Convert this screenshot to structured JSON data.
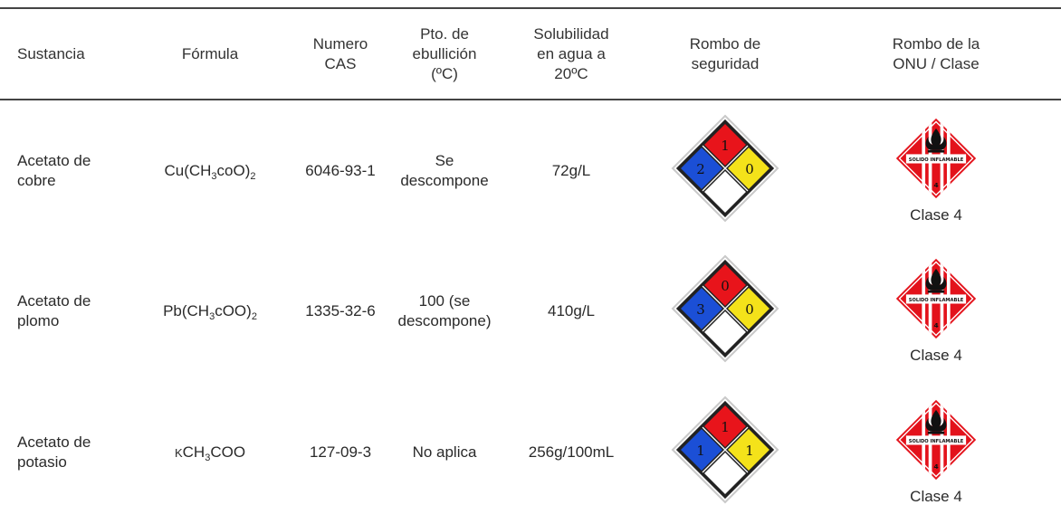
{
  "header": {
    "sustancia": "Sustancia",
    "formula": "Fórmula",
    "cas": [
      "Numero",
      "CAS"
    ],
    "pto": [
      "Pto. de",
      "ebullición",
      "(ºC)"
    ],
    "solubilidad": [
      "Solubilidad",
      "en agua a",
      "20ºC"
    ],
    "rombo_seguridad": [
      "Rombo de",
      "seguridad"
    ],
    "rombo_onu": [
      "Rombo de la",
      "ONU / Clase"
    ]
  },
  "rows": [
    {
      "sustancia": [
        "Acetato de",
        "cobre"
      ],
      "formula": {
        "a": "Cu(CH",
        "sub1": "3",
        "b": "coO)",
        "sub2": "2"
      },
      "cas": "6046-93-1",
      "pto": [
        "Se",
        "descompone"
      ],
      "solubilidad": "72g/L",
      "nfpa": {
        "top": "1",
        "left": "2",
        "right": "0"
      },
      "un_label": "SOLIDO INFLAMABLE",
      "un_number": "4",
      "clase": "Clase 4"
    },
    {
      "sustancia": [
        "Acetato de",
        "plomo"
      ],
      "formula": {
        "a": "Pb(CH",
        "sub1": "3",
        "b": "cOO)",
        "sub2": "2"
      },
      "cas": "1335-32-6",
      "pto": [
        "100 (se",
        "descompone)"
      ],
      "solubilidad": "410g/L",
      "nfpa": {
        "top": "0",
        "left": "3",
        "right": "0"
      },
      "un_label": "SOLIDO INFLAMABLE",
      "un_number": "4",
      "clase": "Clase 4"
    },
    {
      "sustancia": [
        "Acetato de",
        "potasio"
      ],
      "formula": {
        "k": "K",
        "a": "CH",
        "sub1": "3",
        "b": "COO"
      },
      "cas": "127-09-3",
      "pto": [
        "No aplica"
      ],
      "solubilidad": "256g/100mL",
      "nfpa": {
        "top": "1",
        "left": "1",
        "right": "1"
      },
      "un_label": "SOLIDO INFLAMABLE",
      "un_number": "4",
      "clase": "Clase 4"
    }
  ],
  "colors": {
    "nfpa_red": "#e8141b",
    "nfpa_blue": "#1b4fd6",
    "nfpa_yellow": "#f4e21a",
    "nfpa_white": "#ffffff",
    "un_red": "#e3121b"
  },
  "icons": [
    "nfpa-diamond-icon",
    "un-flammable-solid-icon",
    "flame-icon"
  ]
}
